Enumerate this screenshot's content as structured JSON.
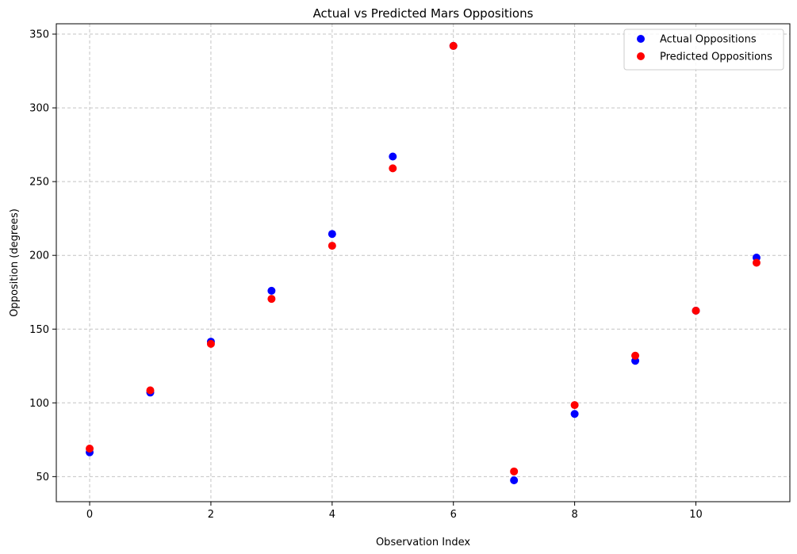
{
  "chart_data": {
    "type": "scatter",
    "title": "Actual vs Predicted Mars Oppositions",
    "xlabel": "Observation Index",
    "ylabel": "Opposition (degrees)",
    "xlim": [
      -0.55,
      11.55
    ],
    "ylim": [
      33,
      357
    ],
    "xticks": [
      0,
      2,
      4,
      6,
      8,
      10
    ],
    "yticks": [
      50,
      100,
      150,
      200,
      250,
      300,
      350
    ],
    "grid": true,
    "legend_position": "top-right",
    "series": [
      {
        "name": "Actual Oppositions",
        "color": "#0000ff",
        "x": [
          0,
          1,
          2,
          3,
          4,
          5,
          6,
          7,
          8,
          9,
          10,
          11
        ],
        "y": [
          66.5,
          107,
          141.5,
          176,
          214.5,
          267,
          342,
          47.5,
          92.5,
          128.5,
          162.5,
          198.5
        ]
      },
      {
        "name": "Predicted Oppositions",
        "color": "#ff0000",
        "x": [
          0,
          1,
          2,
          3,
          4,
          5,
          6,
          7,
          8,
          9,
          10,
          11
        ],
        "y": [
          69,
          108.5,
          140,
          170.5,
          206.5,
          259,
          342,
          53.5,
          98.5,
          132,
          162.5,
          195
        ]
      }
    ]
  }
}
